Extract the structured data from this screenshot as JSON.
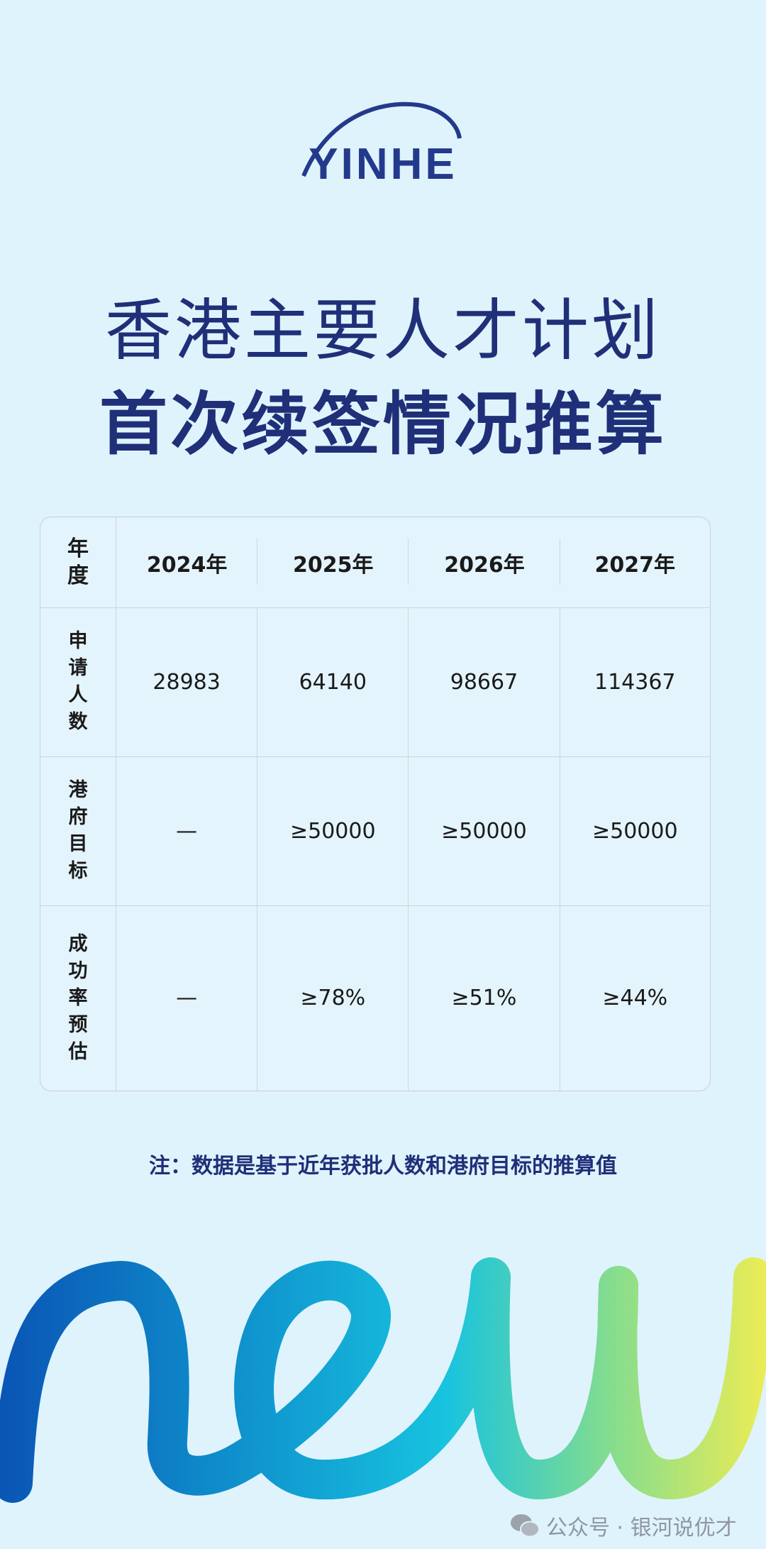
{
  "logo": {
    "text": "YINHE",
    "color": "#233a8c"
  },
  "title": {
    "line1": "香港主要人才计划",
    "line2": "首次续签情况推算",
    "color": "#1f2f78"
  },
  "table": {
    "corner_header": "年度",
    "years": [
      "2024年",
      "2025年",
      "2026年",
      "2027年"
    ],
    "rows": [
      {
        "label": "申请人数",
        "values": [
          "28983",
          "64140",
          "98667",
          "114367"
        ]
      },
      {
        "label": "港府目标",
        "values": [
          "—",
          "≥50000",
          "≥50000",
          "≥50000"
        ]
      },
      {
        "label": "成功率预估",
        "values": [
          "—",
          "≥78%",
          "≥51%",
          "≥44%"
        ]
      }
    ]
  },
  "note": "注：数据是基于近年获批人数和港府目标的推算值",
  "decoration": {
    "word": "new",
    "gradient": [
      "#0a55b5",
      "#0f8fcc",
      "#17c3df",
      "#86dd8e",
      "#ecec55"
    ]
  },
  "watermark": {
    "icon": "wechat-icon",
    "text": "公众号 · 银河说优才"
  }
}
